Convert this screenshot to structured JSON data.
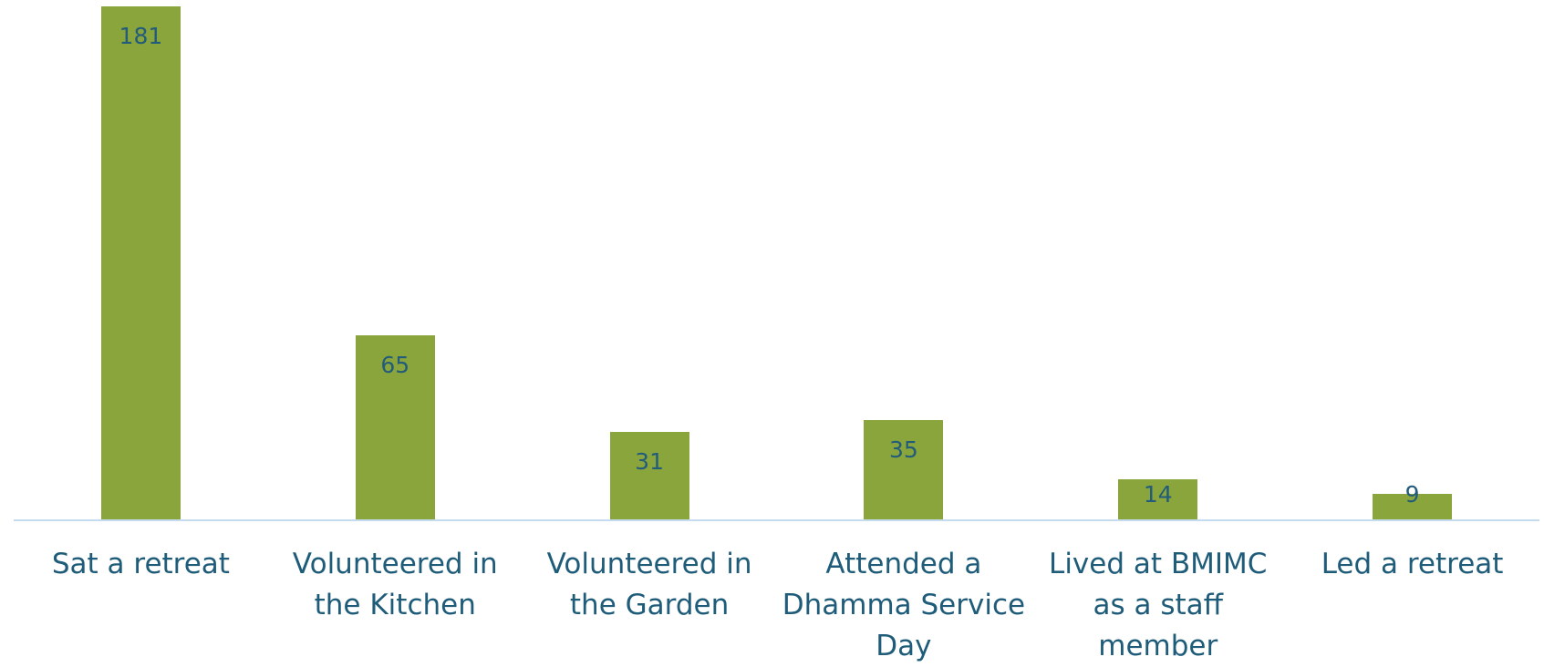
{
  "chart_data": {
    "type": "bar",
    "categories": [
      "Sat a retreat",
      "Volunteered in the Kitchen",
      "Volunteered in the Garden",
      "Attended a Dhamma Service Day",
      "Lived at BMIMC as a staff member",
      "Led a retreat"
    ],
    "values": [
      181,
      65,
      31,
      35,
      14,
      9
    ],
    "color": "#8aa53c"
  }
}
